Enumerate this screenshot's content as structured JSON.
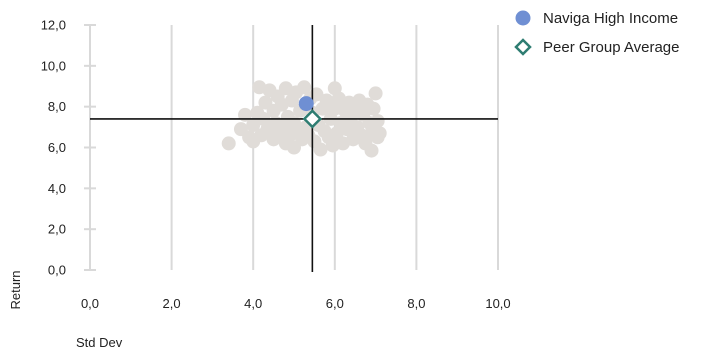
{
  "chart_data": {
    "type": "scatter",
    "xlabel": "Std Dev",
    "ylabel": "Return",
    "xlim": [
      0,
      10
    ],
    "ylim": [
      0,
      12
    ],
    "x_ticks": [
      0,
      2,
      4,
      6,
      8,
      10
    ],
    "y_ticks": [
      0,
      2,
      4,
      6,
      8,
      10,
      12
    ],
    "x_tick_labels": [
      "0,0",
      "2,0",
      "4,0",
      "6,0",
      "8,0",
      "10,0"
    ],
    "y_tick_labels": [
      "0,0",
      "2,0",
      "4,0",
      "6,0",
      "8,0",
      "10,0",
      "12,0"
    ],
    "grid": "vertical",
    "legend_position": "top-right",
    "reference_lines": {
      "x": 5.45,
      "y": 7.4
    },
    "series": [
      {
        "name": "",
        "role": "peer-universe",
        "color": "#e0dcd8",
        "marker": "circle",
        "points": [
          [
            3.4,
            6.2
          ],
          [
            3.7,
            6.9
          ],
          [
            3.8,
            7.6
          ],
          [
            3.9,
            6.5
          ],
          [
            4.0,
            6.3
          ],
          [
            4.0,
            7.1
          ],
          [
            4.1,
            7.7
          ],
          [
            4.15,
            8.95
          ],
          [
            4.2,
            6.6
          ],
          [
            4.25,
            7.4
          ],
          [
            4.3,
            8.2
          ],
          [
            4.35,
            6.9
          ],
          [
            4.4,
            8.8
          ],
          [
            4.5,
            6.4
          ],
          [
            4.5,
            7.8
          ],
          [
            4.55,
            7.2
          ],
          [
            4.6,
            8.5
          ],
          [
            4.65,
            6.7
          ],
          [
            4.7,
            8.1
          ],
          [
            4.75,
            7.0
          ],
          [
            4.8,
            6.2
          ],
          [
            4.8,
            8.9
          ],
          [
            4.85,
            7.5
          ],
          [
            4.9,
            6.6
          ],
          [
            4.95,
            8.3
          ],
          [
            5.0,
            7.2
          ],
          [
            5.0,
            6.0
          ],
          [
            5.05,
            8.7
          ],
          [
            5.1,
            6.9
          ],
          [
            5.15,
            7.8
          ],
          [
            5.2,
            6.4
          ],
          [
            5.25,
            8.95
          ],
          [
            5.3,
            7.0
          ],
          [
            5.35,
            6.6
          ],
          [
            5.4,
            8.4
          ],
          [
            5.45,
            7.7
          ],
          [
            5.5,
            6.3
          ],
          [
            5.55,
            8.6
          ],
          [
            5.6,
            7.1
          ],
          [
            5.65,
            5.9
          ],
          [
            5.7,
            7.9
          ],
          [
            5.75,
            6.8
          ],
          [
            5.8,
            8.3
          ],
          [
            5.85,
            6.5
          ],
          [
            5.9,
            7.4
          ],
          [
            5.95,
            6.1
          ],
          [
            6.0,
            8.9
          ],
          [
            6.0,
            7.9
          ],
          [
            6.05,
            6.7
          ],
          [
            6.1,
            8.4
          ],
          [
            6.15,
            7.2
          ],
          [
            6.2,
            6.2
          ],
          [
            6.25,
            7.8
          ],
          [
            6.3,
            6.9
          ],
          [
            6.35,
            8.2
          ],
          [
            6.4,
            7.5
          ],
          [
            6.45,
            6.4
          ],
          [
            6.5,
            8.0
          ],
          [
            6.55,
            7.0
          ],
          [
            6.6,
            8.3
          ],
          [
            6.65,
            6.6
          ],
          [
            6.7,
            7.6
          ],
          [
            6.75,
            6.2
          ],
          [
            6.8,
            8.1
          ],
          [
            6.85,
            7.2
          ],
          [
            6.9,
            6.7
          ],
          [
            6.9,
            5.85
          ],
          [
            6.95,
            7.9
          ],
          [
            7.0,
            8.65
          ],
          [
            7.05,
            6.5
          ],
          [
            7.05,
            7.3
          ],
          [
            7.1,
            6.7
          ]
        ]
      },
      {
        "name": "Naviga High Income",
        "role": "fund",
        "color": "#6f8fd3",
        "marker": "circle",
        "points": [
          [
            5.3,
            8.15
          ]
        ]
      },
      {
        "name": "Peer Group Average",
        "role": "peer-average",
        "color": "#2e7d72",
        "marker": "diamond",
        "points": [
          [
            5.45,
            7.4
          ]
        ]
      }
    ]
  }
}
